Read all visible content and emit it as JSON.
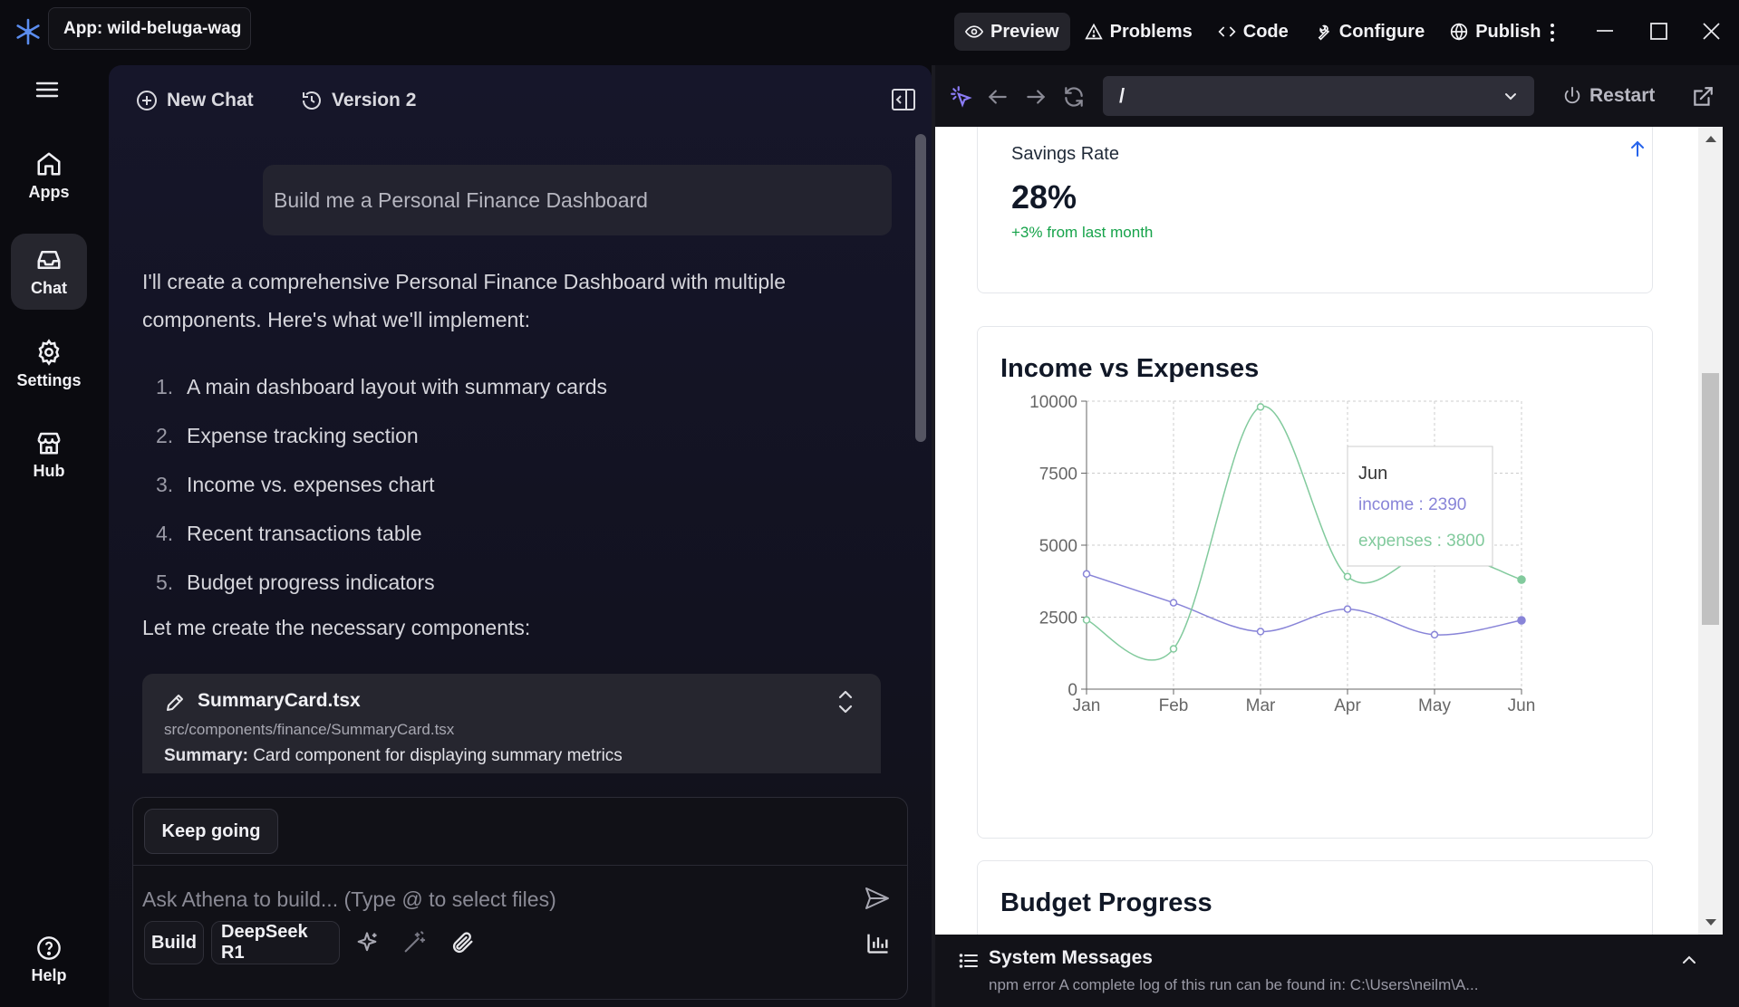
{
  "window": {
    "app_label": "App: wild-beluga-wag"
  },
  "topnav": {
    "preview": "Preview",
    "problems": "Problems",
    "code": "Code",
    "configure": "Configure",
    "publish": "Publish"
  },
  "sidebar": {
    "items": [
      {
        "label": "Apps",
        "icon": "home-icon"
      },
      {
        "label": "Chat",
        "icon": "inbox-icon"
      },
      {
        "label": "Settings",
        "icon": "gear-icon"
      },
      {
        "label": "Hub",
        "icon": "store-icon"
      }
    ],
    "help": "Help"
  },
  "chat": {
    "new_chat": "New Chat",
    "version": "Version 2",
    "user_message": "Build me a Personal Finance Dashboard",
    "intro": "I'll create a comprehensive Personal Finance Dashboard with multiple components. Here's what we'll implement:",
    "plan": [
      {
        "num": "1.",
        "text": "A main dashboard layout with summary cards"
      },
      {
        "num": "2.",
        "text": "Expense tracking section"
      },
      {
        "num": "3.",
        "text": "Income vs. expenses chart"
      },
      {
        "num": "4.",
        "text": "Recent transactions table"
      },
      {
        "num": "5.",
        "text": "Budget progress indicators"
      }
    ],
    "components_line": "Let me create the necessary components:",
    "file_card": {
      "name": "SummaryCard.tsx",
      "path": "src/components/finance/SummaryCard.tsx",
      "summary_label": "Summary:",
      "summary_text": " Card component for displaying summary metrics"
    }
  },
  "composer": {
    "keep_going": "Keep going",
    "placeholder": "Ask Athena to build... (Type @ to select files)",
    "mode": "Build",
    "model": "DeepSeek R1"
  },
  "preview_toolbar": {
    "url": "/",
    "restart": "Restart"
  },
  "savings_card": {
    "title": "Savings Rate",
    "value": "28%",
    "change": "+3% from last month"
  },
  "chart_card": {
    "title": "Income vs Expenses"
  },
  "budget_card": {
    "title": "Budget Progress"
  },
  "chart_data": {
    "type": "line",
    "title": "Income vs Expenses",
    "categories": [
      "Jan",
      "Feb",
      "Mar",
      "Apr",
      "May",
      "Jun"
    ],
    "ylim": [
      0,
      10000
    ],
    "yticks": [
      0,
      2500,
      5000,
      7500,
      10000
    ],
    "grid": true,
    "series": [
      {
        "name": "income",
        "color": "#8884d8",
        "values": [
          4000,
          3000,
          2000,
          2780,
          1890,
          2390
        ]
      },
      {
        "name": "expenses",
        "color": "#82ca9d",
        "values": [
          2400,
          1398,
          9800,
          3908,
          4800,
          3800
        ]
      }
    ],
    "tooltip": {
      "label": "Jun",
      "income_text": "income : 2390",
      "expenses_text": "expenses : 3800"
    }
  },
  "system_messages": {
    "title": "System Messages",
    "text": "npm error A complete log of this run can be found in: C:\\Users\\neilm\\A..."
  }
}
